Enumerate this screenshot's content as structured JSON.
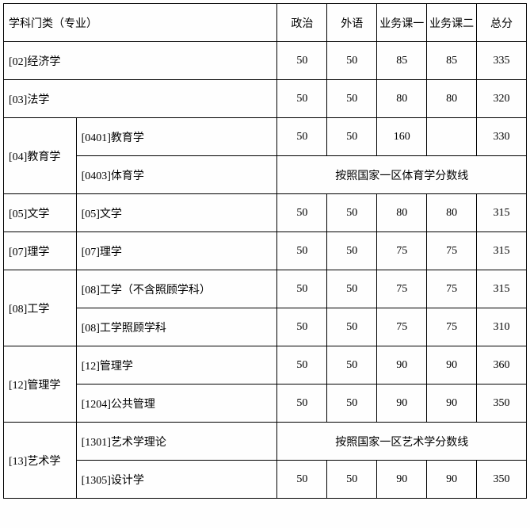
{
  "headers": {
    "category": "学科门类（专业）",
    "politics": "政治",
    "foreign": "外语",
    "course1": "业务课一",
    "course2": "业务课二",
    "total": "总分"
  },
  "rows": {
    "econ": {
      "cat": "[02]经济学",
      "p": "50",
      "f": "50",
      "c1": "85",
      "c2": "85",
      "t": "335"
    },
    "law": {
      "cat": "[03]法学",
      "p": "50",
      "f": "50",
      "c1": "80",
      "c2": "80",
      "t": "320"
    },
    "edu_group": "[04]教育学",
    "edu1": {
      "sub": "[0401]教育学",
      "p": "50",
      "f": "50",
      "c1": "160",
      "c2": "",
      "t": "330"
    },
    "edu2": {
      "sub": "[0403]体育学",
      "note": "按照国家一区体育学分数线"
    },
    "lit_group": "[05]文学",
    "lit": {
      "sub": "[05]文学",
      "p": "50",
      "f": "50",
      "c1": "80",
      "c2": "80",
      "t": "315"
    },
    "sci_group": "[07]理学",
    "sci": {
      "sub": "[07]理学",
      "p": "50",
      "f": "50",
      "c1": "75",
      "c2": "75",
      "t": "315"
    },
    "eng_group": "[08]工学",
    "eng1": {
      "sub": "[08]工学（不含照顾学科）",
      "p": "50",
      "f": "50",
      "c1": "75",
      "c2": "75",
      "t": "315"
    },
    "eng2": {
      "sub": "[08]工学照顾学科",
      "p": "50",
      "f": "50",
      "c1": "75",
      "c2": "75",
      "t": "310"
    },
    "mgmt_group": "[12]管理学",
    "mgmt1": {
      "sub": "[12]管理学",
      "p": "50",
      "f": "50",
      "c1": "90",
      "c2": "90",
      "t": "360"
    },
    "mgmt2": {
      "sub": "[1204]公共管理",
      "p": "50",
      "f": "50",
      "c1": "90",
      "c2": "90",
      "t": "350"
    },
    "art_group": "[13]艺术学",
    "art1": {
      "sub": "[1301]艺术学理论",
      "note": "按照国家一区艺术学分数线"
    },
    "art2": {
      "sub": "[1305]设计学",
      "p": "50",
      "f": "50",
      "c1": "90",
      "c2": "90",
      "t": "350"
    }
  }
}
